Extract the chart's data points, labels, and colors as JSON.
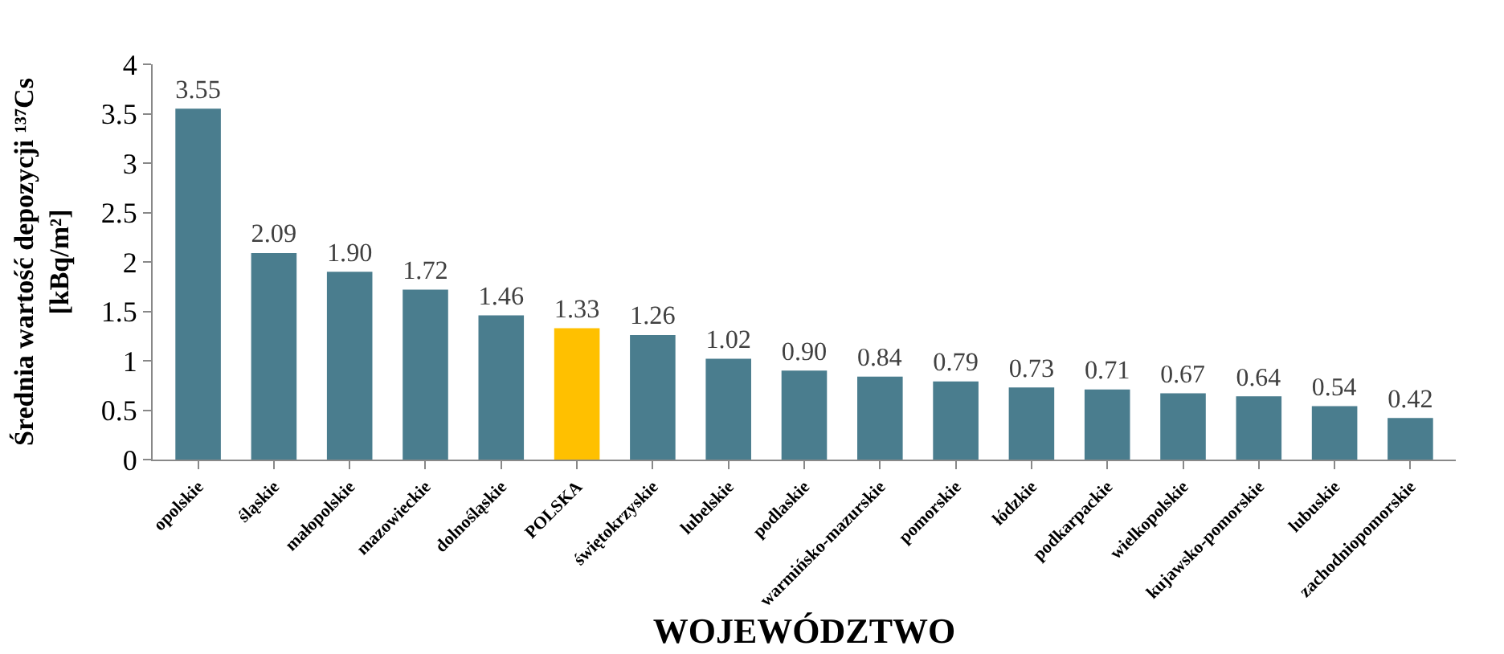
{
  "chart_data": {
    "type": "bar",
    "xlabel": "WOJEWÓDZTWO",
    "ylabel": "Średnia wartość depozycji ¹³⁷Cs\n[kBq/m²]",
    "categories": [
      "opolskie",
      "śląskie",
      "małopolskie",
      "mazowieckie",
      "dolnośląskie",
      "POLSKA",
      "świętokrzyskie",
      "lubelskie",
      "podlaskie",
      "warmińsko-mazurskie",
      "pomorskie",
      "łódzkie",
      "podkarpackie",
      "wielkopolskie",
      "kujawsko-pomorskie",
      "lubuskie",
      "zachodniopomorskie"
    ],
    "values": [
      3.55,
      2.09,
      1.9,
      1.72,
      1.46,
      1.33,
      1.26,
      1.02,
      0.9,
      0.84,
      0.79,
      0.73,
      0.71,
      0.67,
      0.64,
      0.54,
      0.42
    ],
    "value_labels": [
      "3.55",
      "2.09",
      "1.90",
      "1.72",
      "1.46",
      "1.33",
      "1.26",
      "1.02",
      "0.90",
      "0.84",
      "0.79",
      "0.73",
      "0.71",
      "0.67",
      "0.64",
      "0.54",
      "0.42"
    ],
    "colors": [
      "#4a7d8e",
      "#4a7d8e",
      "#4a7d8e",
      "#4a7d8e",
      "#4a7d8e",
      "#ffc000",
      "#4a7d8e",
      "#4a7d8e",
      "#4a7d8e",
      "#4a7d8e",
      "#4a7d8e",
      "#4a7d8e",
      "#4a7d8e",
      "#4a7d8e",
      "#4a7d8e",
      "#4a7d8e",
      "#4a7d8e"
    ],
    "ylim": [
      0,
      4
    ],
    "yticks": [
      0,
      0.5,
      1,
      1.5,
      2,
      2.5,
      3,
      3.5,
      4
    ]
  }
}
